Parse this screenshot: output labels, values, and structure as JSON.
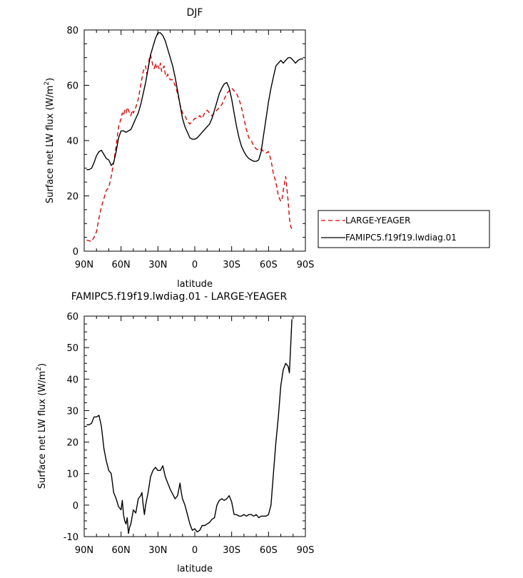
{
  "chart_data": [
    {
      "type": "line",
      "title": "DJF",
      "xlabel": "latitude",
      "ylabel": "Surface net LW flux (W/m",
      "ylabel_sup": "2",
      "ylabel_tail": ")",
      "xlim": [
        90,
        -90
      ],
      "ylim": [
        0,
        80
      ],
      "xticks": [
        90,
        60,
        30,
        0,
        -30,
        -60,
        -90
      ],
      "xtick_labels": [
        "90N",
        "60N",
        "30N",
        "0",
        "30S",
        "60S",
        "90S"
      ],
      "yticks": [
        0,
        20,
        40,
        60,
        80
      ],
      "ytick_labels": [
        "0",
        "20",
        "40",
        "60",
        "80"
      ],
      "legend": "right",
      "series": [
        {
          "name": "LARGE-YEAGER",
          "color": "#e00000",
          "dash": "dashed",
          "x": [
            88,
            84,
            82,
            80,
            78,
            76,
            74,
            72,
            70,
            68,
            66,
            64,
            62,
            60,
            59,
            58,
            57,
            56,
            55,
            54,
            53,
            52,
            51,
            50,
            48,
            46,
            44,
            42,
            40,
            39,
            38,
            37,
            36,
            35,
            34,
            33,
            32,
            31,
            30,
            29,
            28,
            27,
            26,
            25,
            24,
            23,
            22,
            20,
            18,
            16,
            14,
            12,
            10,
            8,
            6,
            4,
            2,
            0,
            -2,
            -4,
            -6,
            -8,
            -10,
            -12,
            -14,
            -16,
            -18,
            -20,
            -22,
            -24,
            -26,
            -28,
            -30,
            -32,
            -34,
            -36,
            -38,
            -40,
            -42,
            -44,
            -46,
            -48,
            -50,
            -52,
            -54,
            -56,
            -58,
            -60,
            -62,
            -64,
            -66,
            -68,
            -70,
            -71,
            -72,
            -74,
            -76,
            -77,
            -78,
            -79
          ],
          "values": [
            4,
            3.5,
            5,
            7,
            12,
            16,
            19,
            22,
            23,
            27,
            32,
            38,
            45,
            48,
            50,
            49,
            51,
            50,
            52,
            51,
            50,
            49,
            51,
            50,
            52,
            55,
            60,
            65,
            67,
            64,
            66,
            70,
            71,
            69,
            67,
            66,
            68,
            66,
            67,
            66,
            68,
            65,
            66,
            67,
            64,
            63,
            64,
            62,
            62,
            60,
            57,
            53,
            50,
            49,
            47,
            46,
            47,
            48,
            48,
            49,
            48,
            50,
            51,
            50,
            49,
            50,
            51,
            52,
            53,
            55,
            57,
            58,
            59,
            58,
            57,
            55,
            52,
            48,
            44,
            41,
            40,
            38,
            37,
            36.5,
            37,
            36,
            35.5,
            36,
            33,
            28,
            25,
            20,
            18,
            19,
            22,
            27,
            18,
            12,
            9,
            8
          ]
        },
        {
          "name": "FAMIPC5.f19f19.lwdiag.01",
          "color": "#000000",
          "dash": "solid",
          "x": [
            88,
            86,
            84,
            82,
            80,
            78,
            76,
            74,
            72,
            70,
            68,
            66,
            64,
            62,
            60,
            58,
            56,
            54,
            52,
            50,
            48,
            46,
            44,
            42,
            40,
            38,
            36,
            34,
            32,
            30,
            28,
            26,
            24,
            22,
            20,
            18,
            16,
            14,
            12,
            10,
            8,
            6,
            4,
            2,
            0,
            -2,
            -4,
            -6,
            -8,
            -10,
            -12,
            -14,
            -16,
            -18,
            -20,
            -22,
            -24,
            -26,
            -28,
            -30,
            -32,
            -34,
            -36,
            -38,
            -40,
            -42,
            -44,
            -46,
            -48,
            -50,
            -52,
            -54,
            -56,
            -58,
            -60,
            -62,
            -64,
            -66,
            -68,
            -70,
            -72,
            -74,
            -76,
            -78,
            -80,
            -82,
            -84,
            -86,
            -88
          ],
          "values": [
            29.5,
            29.5,
            30,
            32,
            34.5,
            36,
            36.5,
            35,
            33.5,
            33,
            31,
            32,
            36,
            41,
            43.5,
            43.5,
            43,
            43.5,
            44,
            46,
            48,
            50,
            53,
            57,
            61,
            66,
            71,
            74,
            77,
            79,
            79,
            78,
            76,
            73,
            70,
            67,
            63,
            58,
            53,
            48,
            45,
            43,
            41,
            40.5,
            40.5,
            41,
            42,
            43,
            44,
            45,
            46,
            48,
            51,
            54,
            57,
            59,
            60.5,
            61,
            59,
            55,
            50,
            45,
            41,
            38,
            36,
            34.5,
            33.5,
            33,
            32.5,
            32.5,
            33,
            36,
            42,
            48,
            54,
            59,
            63,
            67,
            68,
            69,
            68,
            69,
            70,
            70,
            69,
            68,
            69,
            69.5,
            69.5
          ]
        }
      ]
    },
    {
      "type": "line",
      "title": "FAMIPC5.f19f19.lwdiag.01 - LARGE-YEAGER",
      "xlabel": "latitude",
      "ylabel": "Surface net LW flux (W/m",
      "ylabel_sup": "2",
      "ylabel_tail": ")",
      "xlim": [
        90,
        -90
      ],
      "ylim": [
        -10,
        60
      ],
      "xticks": [
        90,
        60,
        30,
        0,
        -30,
        -60,
        -90
      ],
      "xtick_labels": [
        "90N",
        "60N",
        "30N",
        "0",
        "30S",
        "60S",
        "90S"
      ],
      "yticks": [
        -10,
        0,
        10,
        20,
        30,
        40,
        50,
        60
      ],
      "ytick_labels": [
        "-10",
        "0",
        "10",
        "20",
        "30",
        "40",
        "50",
        "60"
      ],
      "series": [
        {
          "color": "#000000",
          "dash": "solid",
          "x": [
            88,
            86,
            84,
            82,
            80,
            78,
            76,
            74,
            72,
            70,
            68,
            66,
            64,
            62,
            60,
            59,
            58,
            57,
            56,
            55,
            54,
            53,
            52,
            50,
            48,
            46,
            44,
            43,
            42,
            41,
            40,
            39,
            38,
            36,
            34,
            32,
            30,
            28,
            26,
            24,
            22,
            20,
            18,
            16,
            14,
            12,
            11,
            10,
            8,
            6,
            4,
            2,
            0,
            -2,
            -4,
            -6,
            -8,
            -10,
            -12,
            -14,
            -16,
            -18,
            -20,
            -22,
            -24,
            -26,
            -28,
            -30,
            -32,
            -34,
            -36,
            -38,
            -40,
            -42,
            -44,
            -46,
            -48,
            -50,
            -52,
            -54,
            -56,
            -58,
            -60,
            -62,
            -64,
            -66,
            -68,
            -70,
            -72,
            -74,
            -76,
            -77,
            -78,
            -79
          ],
          "values": [
            25.5,
            25.5,
            26,
            28,
            28,
            28.5,
            25,
            18,
            14,
            11,
            10,
            4,
            2,
            -0.5,
            -1.5,
            1.5,
            -3,
            -5,
            -6,
            -4,
            -9,
            -7,
            -6,
            -1.5,
            -2.5,
            2,
            3,
            4,
            0,
            -3,
            0,
            2,
            4,
            9,
            11,
            12,
            11,
            11,
            12.5,
            9,
            7,
            5,
            3.5,
            2,
            3,
            7,
            4,
            2,
            0,
            -3,
            -6,
            -8,
            -7.5,
            -8.5,
            -8,
            -6.5,
            -6.5,
            -6,
            -5.5,
            -4.5,
            -4,
            0,
            1.5,
            2,
            1.5,
            2,
            3,
            1,
            -3,
            -3,
            -3.5,
            -3.5,
            -3,
            -3.5,
            -3,
            -3,
            -3.5,
            -3,
            -4,
            -3.5,
            -3.5,
            -3.5,
            -3,
            0,
            10,
            20,
            28,
            38,
            43,
            45,
            44,
            42,
            50,
            59
          ]
        }
      ]
    }
  ]
}
